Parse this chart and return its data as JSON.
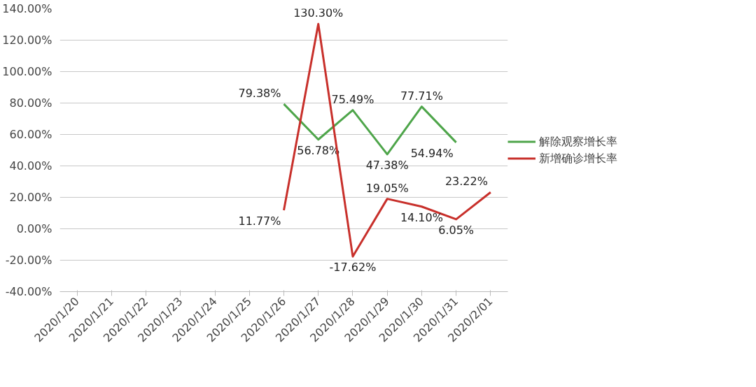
{
  "chart_data": {
    "type": "line",
    "categories": [
      "2020/1/20",
      "2020/1/21",
      "2020/1/22",
      "2020/1/23",
      "2020/1/24",
      "2020/1/25",
      "2020/1/26",
      "2020/1/27",
      "2020/1/28",
      "2020/1/29",
      "2020/1/30",
      "2020/1/31",
      "2020/2/01"
    ],
    "series": [
      {
        "name": "解除观察增长率",
        "color": "#4ea54a",
        "values": [
          null,
          null,
          null,
          null,
          null,
          null,
          79.38,
          56.78,
          75.49,
          47.38,
          77.71,
          54.94,
          null
        ],
        "value_labels": [
          null,
          null,
          null,
          null,
          null,
          null,
          "79.38%",
          "56.78%",
          "75.49%",
          "47.38%",
          "77.71%",
          "54.94%",
          null
        ]
      },
      {
        "name": "新增确诊增长率",
        "color": "#c8302b",
        "values": [
          null,
          null,
          null,
          null,
          null,
          null,
          11.77,
          130.3,
          -17.62,
          19.05,
          14.1,
          6.05,
          23.22
        ],
        "value_labels": [
          null,
          null,
          null,
          null,
          null,
          null,
          "11.77%",
          "130.30%",
          "-17.62%",
          "19.05%",
          "14.10%",
          "6.05%",
          "23.22%"
        ]
      }
    ],
    "ylim": [
      -40,
      140
    ],
    "yticks": [
      {
        "value": -40,
        "label": "-40.00%"
      },
      {
        "value": -20,
        "label": "-20.00%"
      },
      {
        "value": 0,
        "label": "0.00%"
      },
      {
        "value": 20,
        "label": "20.00%"
      },
      {
        "value": 40,
        "label": "40.00%"
      },
      {
        "value": 60,
        "label": "60.00%"
      },
      {
        "value": 80,
        "label": "80.00%"
      },
      {
        "value": 100,
        "label": "100.00%"
      },
      {
        "value": 120,
        "label": "120.00%"
      },
      {
        "value": 140,
        "label": "140.00%"
      }
    ],
    "grid": "y",
    "legend": "right",
    "marker": "none",
    "line_style": "solid"
  }
}
